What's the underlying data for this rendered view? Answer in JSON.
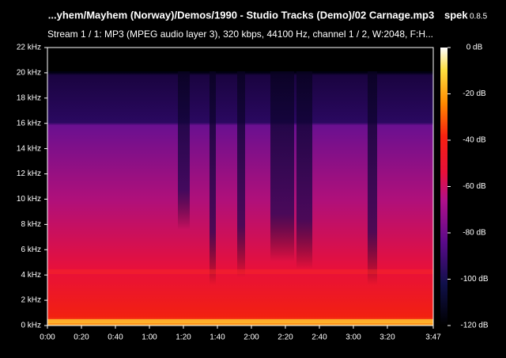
{
  "chart_data": {
    "type": "spectrogram",
    "title": "...yhem/Mayhem (Norway)/Demos/1990 - Studio Tracks (Demo)/02 Carnage.mp3",
    "app_name": "spek",
    "app_version": "0.8.5",
    "subtitle": "Stream 1 / 1: MP3 (MPEG audio layer 3), 320 kbps, 44100 Hz, channel 1 / 2, W:2048, F:H...",
    "xlim": [
      0,
      227
    ],
    "xticks": [
      {
        "value": 0,
        "label": "0:00"
      },
      {
        "value": 20,
        "label": "0:20"
      },
      {
        "value": 40,
        "label": "0:40"
      },
      {
        "value": 60,
        "label": "1:00"
      },
      {
        "value": 80,
        "label": "1:20"
      },
      {
        "value": 100,
        "label": "1:40"
      },
      {
        "value": 120,
        "label": "2:00"
      },
      {
        "value": 140,
        "label": "2:20"
      },
      {
        "value": 160,
        "label": "2:40"
      },
      {
        "value": 180,
        "label": "3:00"
      },
      {
        "value": 200,
        "label": "3:20"
      },
      {
        "value": 227,
        "label": "3:47"
      }
    ],
    "ylim": [
      0,
      22
    ],
    "yticks": [
      {
        "value": 0,
        "label": "0 kHz"
      },
      {
        "value": 2,
        "label": "2 kHz"
      },
      {
        "value": 4,
        "label": "4 kHz"
      },
      {
        "value": 6,
        "label": "6 kHz"
      },
      {
        "value": 8,
        "label": "8 kHz"
      },
      {
        "value": 10,
        "label": "10 kHz"
      },
      {
        "value": 12,
        "label": "12 kHz"
      },
      {
        "value": 14,
        "label": "14 kHz"
      },
      {
        "value": 16,
        "label": "16 kHz"
      },
      {
        "value": 18,
        "label": "18 kHz"
      },
      {
        "value": 20,
        "label": "20 kHz"
      },
      {
        "value": 22,
        "label": "22 kHz"
      }
    ],
    "colorbar_lim": [
      -120,
      0
    ],
    "colorbar_ticks": [
      {
        "value": 0,
        "label": "0 dB"
      },
      {
        "value": -20,
        "label": "-20 dB"
      },
      {
        "value": -40,
        "label": "-40 dB"
      },
      {
        "value": -60,
        "label": "-60 dB"
      },
      {
        "value": -80,
        "label": "-80 dB"
      },
      {
        "value": -100,
        "label": "-100 dB"
      },
      {
        "value": -120,
        "label": "-120 dB"
      }
    ]
  }
}
